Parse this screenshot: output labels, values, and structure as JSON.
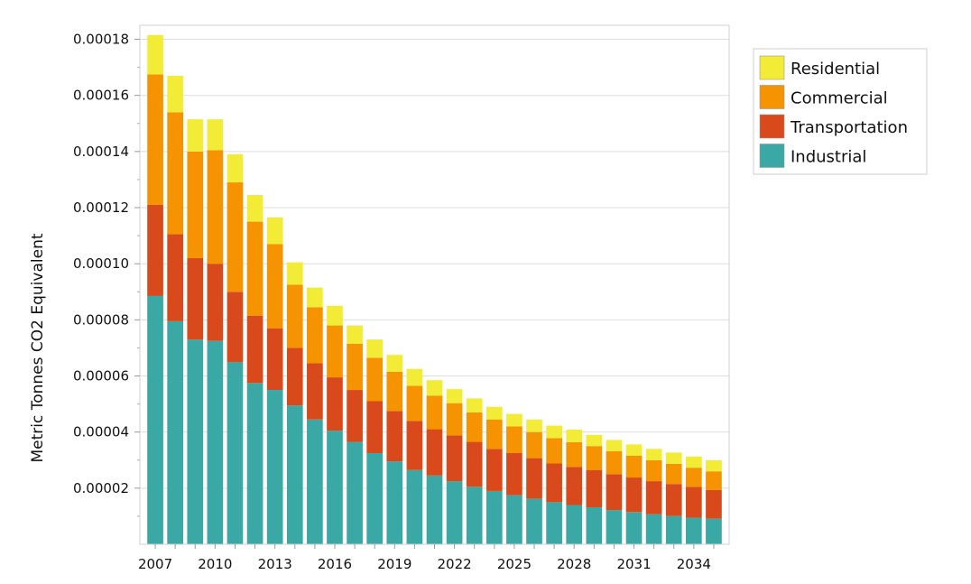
{
  "chart_data": {
    "type": "bar",
    "stacked": true,
    "title": "",
    "xlabel": "",
    "ylabel": "Metric Tonnes CO2 Equivalent",
    "ylim": [
      0,
      0.000185
    ],
    "y_ticks": [
      "0.00002",
      "0.00004",
      "0.00006",
      "0.00008",
      "0.00010",
      "0.00012",
      "0.00014",
      "0.00016",
      "0.00018"
    ],
    "y_tick_values": [
      2e-05,
      4e-05,
      6e-05,
      8e-05,
      0.0001,
      0.00012,
      0.00014,
      0.00016,
      0.00018
    ],
    "x_tick_labels": [
      "2007",
      "2010",
      "2013",
      "2016",
      "2019",
      "2022",
      "2025",
      "2028",
      "2031",
      "2034"
    ],
    "categories": [
      2007,
      2008,
      2009,
      2010,
      2011,
      2012,
      2013,
      2014,
      2015,
      2016,
      2017,
      2018,
      2019,
      2020,
      2021,
      2022,
      2023,
      2024,
      2025,
      2026,
      2027,
      2028,
      2029,
      2030,
      2031,
      2032,
      2033,
      2034,
      2035
    ],
    "grid": true,
    "legend_position": "top-right",
    "series": [
      {
        "name": "Industrial",
        "color": "#3aa8a4",
        "values": [
          8.85e-05,
          7.95e-05,
          7.3e-05,
          7.25e-05,
          6.5e-05,
          5.75e-05,
          5.5e-05,
          4.95e-05,
          4.45e-05,
          4.05e-05,
          3.65e-05,
          3.25e-05,
          2.95e-05,
          2.65e-05,
          2.45e-05,
          2.25e-05,
          2.05e-05,
          1.9e-05,
          1.75e-05,
          1.62e-05,
          1.5e-05,
          1.4e-05,
          1.32e-05,
          1.22e-05,
          1.15e-05,
          1.07e-05,
          1.01e-05,
          9.5e-06,
          9.1e-06
        ]
      },
      {
        "name": "Transportation",
        "color": "#d84a1b",
        "values": [
          3.25e-05,
          3.1e-05,
          2.9e-05,
          2.75e-05,
          2.5e-05,
          2.4e-05,
          2.2e-05,
          2.05e-05,
          2e-05,
          1.9e-05,
          1.85e-05,
          1.85e-05,
          1.8e-05,
          1.75e-05,
          1.65e-05,
          1.63e-05,
          1.6e-05,
          1.5e-05,
          1.5e-05,
          1.45e-05,
          1.38e-05,
          1.36e-05,
          1.33e-05,
          1.28e-05,
          1.23e-05,
          1.18e-05,
          1.14e-05,
          1.1e-05,
          1.03e-05
        ]
      },
      {
        "name": "Commercial",
        "color": "#f59300",
        "values": [
          4.65e-05,
          4.35e-05,
          3.8e-05,
          4.05e-05,
          3.9e-05,
          3.35e-05,
          3e-05,
          2.25e-05,
          2e-05,
          1.85e-05,
          1.65e-05,
          1.55e-05,
          1.4e-05,
          1.25e-05,
          1.2e-05,
          1.15e-05,
          1.05e-05,
          1.05e-05,
          9.5e-06,
          9.3e-06,
          9e-06,
          8.8e-06,
          8.5e-06,
          8.2e-06,
          7.8e-06,
          7.5e-06,
          7.2e-06,
          6.8e-06,
          6.6e-06
        ]
      },
      {
        "name": "Residential",
        "color": "#f3ec37",
        "values": [
          1.4e-05,
          1.3e-05,
          1.15e-05,
          1.1e-05,
          1e-05,
          9.5e-06,
          9.5e-06,
          8e-06,
          7e-06,
          7e-06,
          6.5e-06,
          6.5e-06,
          6e-06,
          6e-06,
          5.5e-06,
          5e-06,
          5e-06,
          4.5e-06,
          4.5e-06,
          4.5e-06,
          4.5e-06,
          4.5e-06,
          4e-06,
          4e-06,
          4e-06,
          4e-06,
          4e-06,
          4e-06,
          4e-06
        ]
      }
    ],
    "legend_order": [
      "Residential",
      "Commercial",
      "Transportation",
      "Industrial"
    ]
  }
}
